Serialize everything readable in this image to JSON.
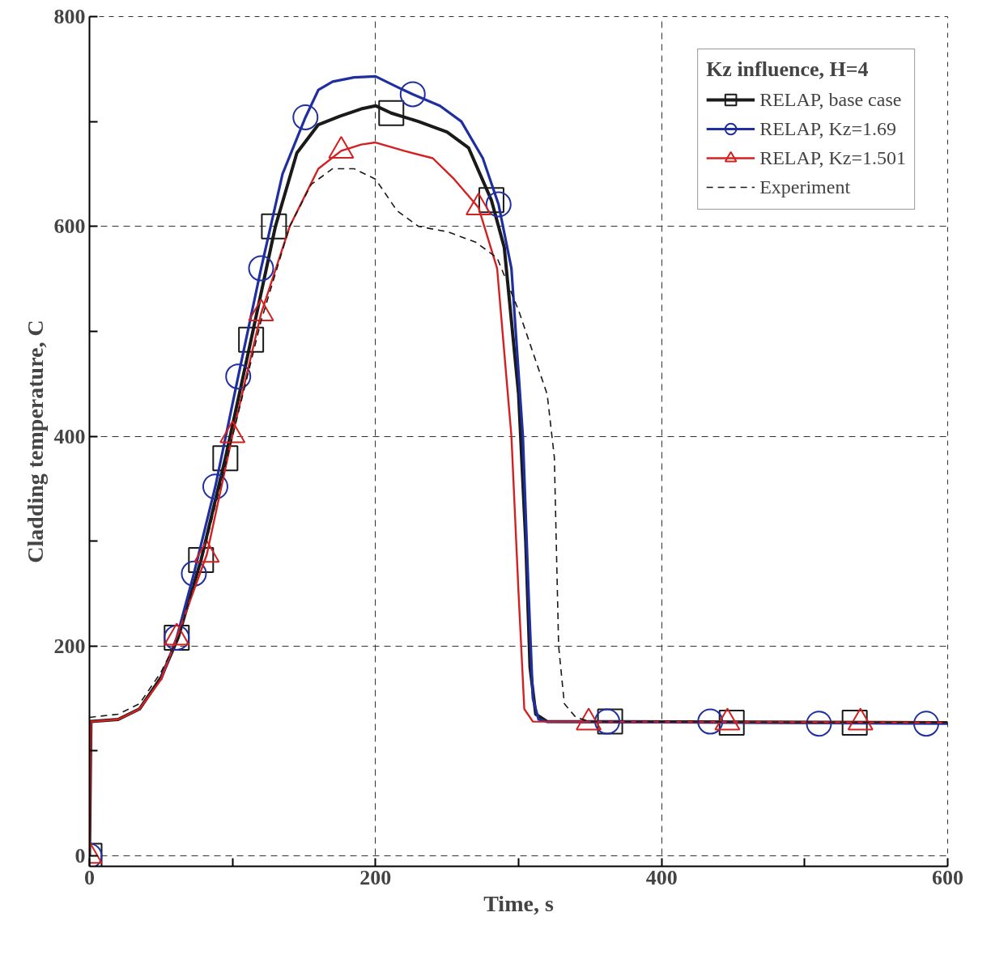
{
  "chart_data": {
    "type": "line",
    "xlabel": "Time, s",
    "ylabel": "Cladding temperature, C",
    "legend_title": "Kz influence, H=4",
    "legend": "top right",
    "grid": true,
    "xlim": [
      0,
      600
    ],
    "ylim": [
      -10,
      800
    ],
    "xticks": [
      0,
      {
        "value": 100,
        "label": null
      },
      200,
      {
        "value": 300,
        "label": null
      },
      400,
      {
        "value": 500,
        "label": null
      },
      600
    ],
    "yticks": [
      0,
      {
        "value": 100,
        "label": null
      },
      200,
      {
        "value": 300,
        "label": null
      },
      400,
      {
        "value": 500,
        "label": null
      },
      600,
      {
        "value": 700,
        "label": null
      },
      800
    ],
    "series": [
      {
        "name": "RELAP, base case",
        "color": "#1a1a1a",
        "marker": "none",
        "line_style": "solid",
        "x": [
          0,
          1,
          20,
          35,
          50,
          62,
          78,
          95,
          113,
          130,
          145,
          160,
          175,
          190,
          200,
          211,
          230,
          250,
          265,
          281,
          290,
          300,
          305,
          308,
          312,
          320,
          600
        ],
        "values": [
          0,
          128,
          130,
          140,
          170,
          208,
          282,
          379,
          492,
          600,
          670,
          697,
          705,
          712,
          715,
          708,
          700,
          690,
          675,
          625,
          580,
          440,
          300,
          180,
          135,
          128,
          127
        ]
      },
      {
        "color": "#1a1a1a",
        "type": "scatter",
        "marker": "square",
        "x": [
          0,
          61,
          78,
          95,
          113,
          129,
          211,
          281,
          364,
          449,
          535
        ],
        "values": [
          0,
          208,
          282,
          379,
          492,
          600,
          708,
          625,
          128,
          127,
          127
        ]
      },
      {
        "name": "RELAP, Kz=1.69",
        "color": "#1f2f9f",
        "marker": "none",
        "line_style": "solid",
        "x": [
          50,
          61,
          73,
          88,
          104,
          120,
          135,
          151,
          160,
          170,
          185,
          200,
          215,
          226,
          245,
          260,
          275,
          286,
          295,
          303,
          307,
          310,
          314,
          320,
          600
        ],
        "values": [
          168,
          208,
          269,
          352,
          457,
          560,
          650,
          704,
          730,
          738,
          742,
          743,
          733,
          726,
          715,
          700,
          665,
          621,
          560,
          400,
          250,
          150,
          130,
          128,
          126
        ]
      },
      {
        "color": "#1f2f9f",
        "type": "scatter",
        "marker": "circle",
        "x": [
          0,
          61,
          73,
          88,
          104,
          120,
          151,
          226,
          286,
          362,
          434,
          510,
          585
        ],
        "values": [
          0,
          208,
          269,
          352,
          457,
          560,
          704,
          726,
          621,
          128,
          128,
          126,
          126
        ]
      },
      {
        "name": "RELAP, Kz=1.501",
        "color": "#d42020",
        "marker": "none",
        "line_style": "solid",
        "x": [
          0,
          1,
          20,
          35,
          50,
          61,
          82,
          100,
          120,
          140,
          160,
          176,
          190,
          200,
          220,
          240,
          255,
          272,
          285,
          295,
          300,
          304,
          310,
          600
        ],
        "values": [
          0,
          128,
          130,
          140,
          168,
          208,
          287,
          401,
          517,
          600,
          655,
          672,
          678,
          680,
          672,
          665,
          645,
          618,
          560,
          400,
          250,
          140,
          128,
          127
        ]
      },
      {
        "color": "#d42020",
        "type": "scatter",
        "marker": "triangle",
        "x": [
          0,
          61,
          82,
          100,
          120,
          176,
          272,
          349,
          446,
          539
        ],
        "values": [
          0,
          208,
          287,
          401,
          517,
          672,
          618,
          127,
          127,
          127
        ]
      },
      {
        "name": "Experiment",
        "color": "#1a1a1a",
        "marker": "none",
        "line_style": "dashed",
        "x": [
          0,
          20,
          35,
          50,
          62,
          80,
          100,
          120,
          140,
          155,
          170,
          185,
          200,
          215,
          230,
          250,
          270,
          285,
          300,
          310,
          320,
          325,
          328,
          332,
          340,
          350,
          600
        ],
        "values": [
          132,
          135,
          145,
          175,
          208,
          290,
          400,
          510,
          600,
          640,
          655,
          655,
          645,
          615,
          600,
          595,
          585,
          570,
          520,
          480,
          440,
          380,
          200,
          145,
          132,
          128,
          127
        ]
      }
    ]
  }
}
